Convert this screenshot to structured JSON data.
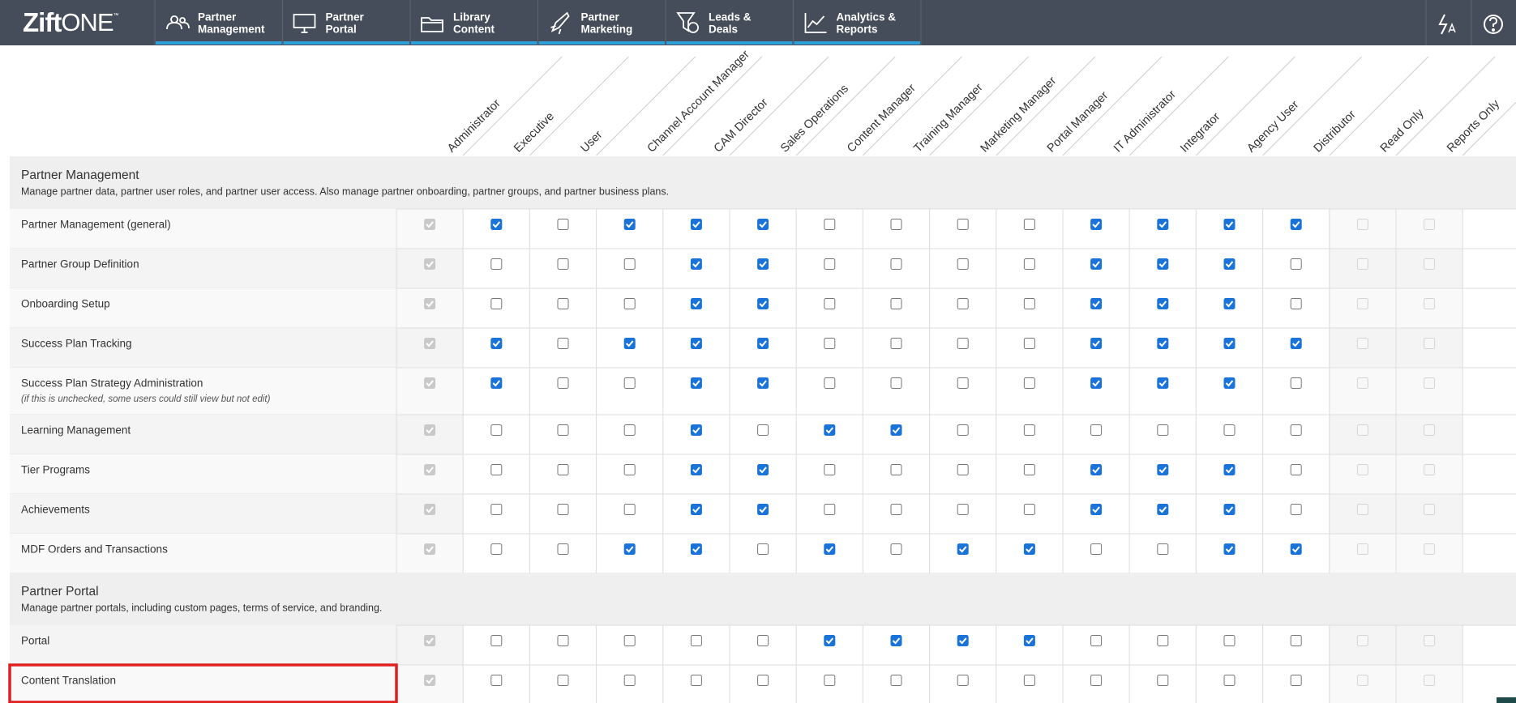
{
  "logo": {
    "brand": "Zift",
    "product": "ONE",
    "mark": "™"
  },
  "nav": [
    {
      "lines": [
        "Partner",
        "Management"
      ]
    },
    {
      "lines": [
        "Partner",
        "Portal"
      ]
    },
    {
      "lines": [
        "Library",
        "Content"
      ]
    },
    {
      "lines": [
        "Partner",
        "Marketing"
      ]
    },
    {
      "lines": [
        "Leads &",
        "Deals"
      ]
    },
    {
      "lines": [
        "Analytics &",
        "Reports"
      ]
    }
  ],
  "roles": [
    {
      "name": "Administrator",
      "mode": "locked"
    },
    {
      "name": "Executive",
      "mode": "open"
    },
    {
      "name": "User",
      "mode": "open"
    },
    {
      "name": "Channel Account Manager",
      "mode": "open"
    },
    {
      "name": "CAM Director",
      "mode": "open"
    },
    {
      "name": "Sales Operations",
      "mode": "open"
    },
    {
      "name": "Content Manager",
      "mode": "open"
    },
    {
      "name": "Training Manager",
      "mode": "open"
    },
    {
      "name": "Marketing Manager",
      "mode": "open"
    },
    {
      "name": "Portal Manager",
      "mode": "open"
    },
    {
      "name": "IT Administrator",
      "mode": "open"
    },
    {
      "name": "Integrator",
      "mode": "open"
    },
    {
      "name": "Agency User",
      "mode": "open"
    },
    {
      "name": "Distributor",
      "mode": "open"
    },
    {
      "name": "Read Only",
      "mode": "disabled"
    },
    {
      "name": "Reports Only",
      "mode": "disabled"
    }
  ],
  "sections": [
    {
      "title": "Partner Management",
      "description": "Manage partner data, partner user roles, and partner user access. Also manage partner onboarding, partner groups, and partner business plans.",
      "rows": [
        {
          "label": "Partner Management (general)",
          "checks": [
            true,
            true,
            false,
            true,
            true,
            true,
            false,
            false,
            false,
            false,
            true,
            true,
            true,
            true,
            false,
            false
          ]
        },
        {
          "label": "Partner Group Definition",
          "checks": [
            true,
            false,
            false,
            false,
            true,
            true,
            false,
            false,
            false,
            false,
            true,
            true,
            true,
            false,
            false,
            false
          ]
        },
        {
          "label": "Onboarding Setup",
          "checks": [
            true,
            false,
            false,
            false,
            true,
            true,
            false,
            false,
            false,
            false,
            true,
            true,
            true,
            false,
            false,
            false
          ]
        },
        {
          "label": "Success Plan Tracking",
          "checks": [
            true,
            true,
            false,
            true,
            true,
            true,
            false,
            false,
            false,
            false,
            true,
            true,
            true,
            true,
            false,
            false
          ]
        },
        {
          "label": "Success Plan Strategy Administration",
          "note": "(if this is unchecked, some users could still view but not edit)",
          "checks": [
            true,
            true,
            false,
            false,
            true,
            true,
            false,
            false,
            false,
            false,
            true,
            true,
            true,
            false,
            false,
            false
          ]
        },
        {
          "label": "Learning Management",
          "checks": [
            true,
            false,
            false,
            false,
            true,
            false,
            true,
            true,
            false,
            false,
            false,
            false,
            false,
            false,
            false,
            false
          ]
        },
        {
          "label": "Tier Programs",
          "checks": [
            true,
            false,
            false,
            false,
            true,
            true,
            false,
            false,
            false,
            false,
            true,
            true,
            true,
            false,
            false,
            false
          ]
        },
        {
          "label": "Achievements",
          "checks": [
            true,
            false,
            false,
            false,
            true,
            true,
            false,
            false,
            false,
            false,
            true,
            true,
            true,
            false,
            false,
            false
          ]
        },
        {
          "label": "MDF Orders and Transactions",
          "checks": [
            true,
            false,
            false,
            true,
            true,
            false,
            true,
            false,
            true,
            true,
            false,
            false,
            true,
            true,
            false,
            false
          ]
        }
      ]
    },
    {
      "title": "Partner Portal",
      "description": "Manage partner portals, including custom pages, terms of service, and branding.",
      "rows": [
        {
          "label": "Portal",
          "checks": [
            true,
            false,
            false,
            false,
            false,
            false,
            true,
            true,
            true,
            true,
            false,
            false,
            false,
            false,
            false,
            false
          ]
        },
        {
          "label": "Content Translation",
          "checks": [
            true,
            false,
            false,
            false,
            false,
            false,
            false,
            false,
            false,
            false,
            false,
            false,
            false,
            false,
            false,
            false
          ]
        }
      ]
    }
  ]
}
